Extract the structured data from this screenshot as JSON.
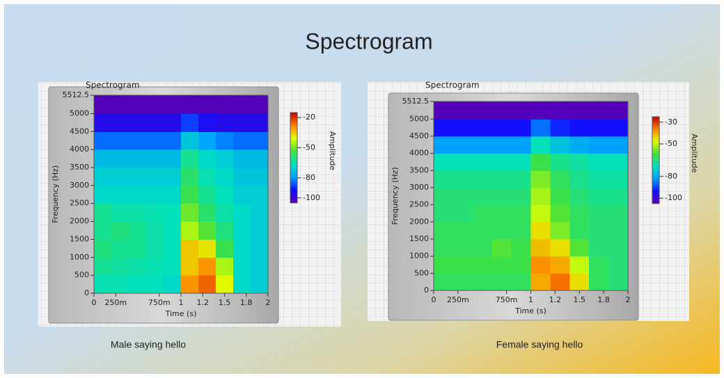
{
  "title": "Spectrogram",
  "chart_data": [
    {
      "type": "heatmap",
      "title": "Spectrogram",
      "caption": "Male saying hello",
      "x_label": "Time (s)",
      "y_label": "Frequency (Hz)",
      "colorbar_label": "Amplitude",
      "x": [
        0.1,
        0.3,
        0.5,
        0.7,
        0.9,
        1.1,
        1.3,
        1.5,
        1.7,
        1.9
      ],
      "y": [
        250,
        750,
        1250,
        1750,
        2250,
        2750,
        3250,
        3750,
        4250,
        4750,
        5250
      ],
      "values": [
        [
          -65,
          -65,
          -66,
          -66,
          -68,
          -30,
          -25,
          -40,
          -68,
          -70
        ],
        [
          -62,
          -63,
          -64,
          -65,
          -66,
          -35,
          -30,
          -45,
          -68,
          -70
        ],
        [
          -60,
          -62,
          -62,
          -64,
          -66,
          -35,
          -38,
          -55,
          -68,
          -70
        ],
        [
          -62,
          -60,
          -62,
          -64,
          -66,
          -45,
          -52,
          -60,
          -68,
          -70
        ],
        [
          -62,
          -64,
          -64,
          -65,
          -66,
          -50,
          -58,
          -64,
          -68,
          -70
        ],
        [
          -68,
          -68,
          -68,
          -68,
          -68,
          -55,
          -62,
          -66,
          -70,
          -70
        ],
        [
          -70,
          -70,
          -70,
          -70,
          -70,
          -58,
          -65,
          -68,
          -72,
          -72
        ],
        [
          -74,
          -74,
          -74,
          -74,
          -74,
          -62,
          -68,
          -70,
          -74,
          -74
        ],
        [
          -84,
          -84,
          -84,
          -84,
          -84,
          -72,
          -78,
          -82,
          -84,
          -84
        ],
        [
          -96,
          -96,
          -96,
          -96,
          -96,
          -88,
          -94,
          -96,
          -96,
          -96
        ],
        [
          -104,
          -104,
          -104,
          -104,
          -104,
          -104,
          -104,
          -104,
          -104,
          -104
        ]
      ],
      "xlim": [
        0,
        2
      ],
      "xticks": [
        0,
        {
          "value": 0.25,
          "label": "250m"
        },
        {
          "value": 0.75,
          "label": "750m"
        },
        1,
        {
          "value": 1.25,
          "label": "1.2"
        },
        1.5,
        {
          "value": 1.75,
          "label": "1.8"
        },
        2
      ],
      "ylim": [
        0,
        5512.5
      ],
      "yticks": [
        0,
        500,
        1000,
        1500,
        2000,
        2500,
        3000,
        3500,
        4000,
        4500,
        5000,
        5512.5
      ],
      "colorlim": [
        -105,
        -15
      ],
      "colorticks": [
        -20,
        -50,
        -80,
        -100
      ],
      "colorscale": [
        "#5a00b4",
        "#1010ff",
        "#00a0ff",
        "#00e0c0",
        "#40e040",
        "#e0ff00",
        "#ff8000",
        "#c00000"
      ]
    },
    {
      "type": "heatmap",
      "title": "Spectrogram",
      "caption": "Female saying hello",
      "x_label": "Time (s)",
      "y_label": "Frequency (Hz)",
      "colorbar_label": "Amplitude",
      "x": [
        0.1,
        0.3,
        0.5,
        0.7,
        0.9,
        1.1,
        1.3,
        1.5,
        1.7,
        1.9
      ],
      "y": [
        250,
        750,
        1250,
        1750,
        2250,
        2750,
        3250,
        3750,
        4250,
        4750,
        5250
      ],
      "values": [
        [
          -62,
          -62,
          -62,
          -62,
          -62,
          -40,
          -35,
          -45,
          -62,
          -64
        ],
        [
          -60,
          -60,
          -60,
          -60,
          -60,
          -38,
          -40,
          -50,
          -62,
          -64
        ],
        [
          -62,
          -62,
          -62,
          -58,
          -60,
          -42,
          -45,
          -58,
          -64,
          -64
        ],
        [
          -62,
          -62,
          -62,
          -62,
          -62,
          -45,
          -55,
          -62,
          -64,
          -64
        ],
        [
          -64,
          -64,
          -62,
          -62,
          -62,
          -50,
          -58,
          -62,
          -64,
          -64
        ],
        [
          -64,
          -64,
          -64,
          -64,
          -64,
          -52,
          -60,
          -64,
          -66,
          -66
        ],
        [
          -66,
          -66,
          -66,
          -66,
          -66,
          -55,
          -62,
          -66,
          -68,
          -68
        ],
        [
          -70,
          -70,
          -70,
          -70,
          -70,
          -60,
          -66,
          -68,
          -70,
          -70
        ],
        [
          -82,
          -82,
          -82,
          -82,
          -82,
          -70,
          -76,
          -80,
          -82,
          -82
        ],
        [
          -94,
          -94,
          -94,
          -94,
          -94,
          -86,
          -92,
          -94,
          -94,
          -94
        ],
        [
          -104,
          -104,
          -104,
          -104,
          -104,
          -104,
          -104,
          -104,
          -104,
          -104
        ]
      ],
      "xlim": [
        0,
        2
      ],
      "xticks": [
        0,
        {
          "value": 0.25,
          "label": "250m"
        },
        {
          "value": 0.75,
          "label": "750m"
        },
        1,
        {
          "value": 1.25,
          "label": "1.2"
        },
        1.5,
        {
          "value": 1.75,
          "label": "1.8"
        },
        2
      ],
      "ylim": [
        0,
        5512.5
      ],
      "yticks": [
        0,
        500,
        1000,
        1500,
        2000,
        2500,
        3000,
        3500,
        4000,
        4500,
        5000,
        5512.5
      ],
      "colorlim": [
        -105,
        -25
      ],
      "colorticks": [
        -30,
        -50,
        -80,
        -100
      ],
      "colorscale": [
        "#5a00b4",
        "#1010ff",
        "#00a0ff",
        "#00e0c0",
        "#40e040",
        "#e0ff00",
        "#ff8000",
        "#c00000"
      ]
    }
  ]
}
